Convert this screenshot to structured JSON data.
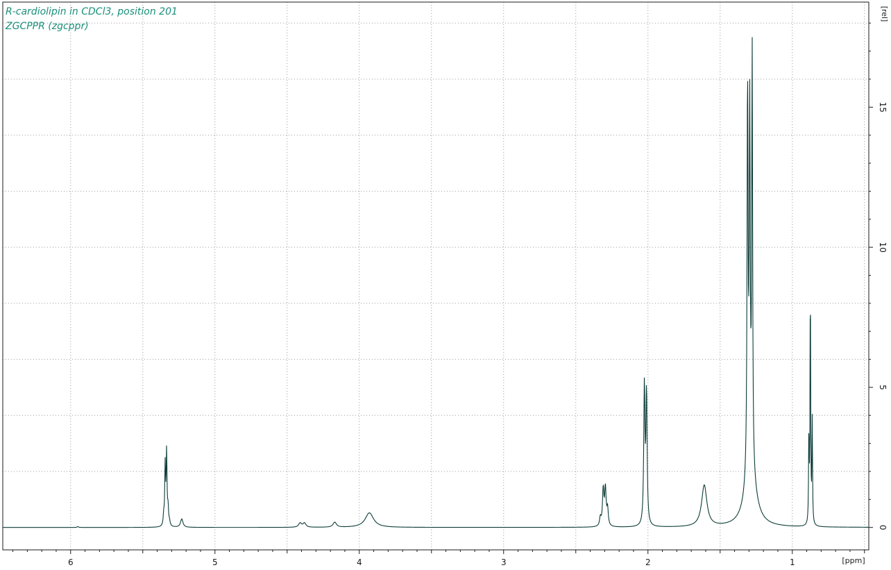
{
  "title": {
    "line1": "R-cardiolipin in CDCl3, position 201",
    "line2": "ZGCPPR (zgcppr)"
  },
  "colors": {
    "title": "#1a8f7a",
    "spectrum": "#0b3b36",
    "axis": "#1a1a1a",
    "grid": "#9a9a9a",
    "background": "#ffffff"
  },
  "chart_data": {
    "type": "line",
    "xlabel": "[ppm]",
    "ylabel": "[rel]",
    "x_reversed": true,
    "xlim": [
      6.47,
      0.47
    ],
    "ylim": [
      -0.8,
      18.75
    ],
    "x_major_ticks": [
      6,
      5,
      4,
      3,
      2,
      1
    ],
    "y_major_ticks": [
      0,
      5,
      10,
      15
    ],
    "x_tick_labels": [
      "6",
      "5",
      "4",
      "3",
      "2",
      "1"
    ],
    "y_tick_labels": [
      "0",
      "5",
      "10",
      "15"
    ],
    "grid": true,
    "baseline": 0,
    "series": [
      {
        "peaks": [
          {
            "ppm": 5.95,
            "height": 0.03,
            "width": 0.006
          },
          {
            "ppm": 5.355,
            "height": 0.35,
            "width": 0.004
          },
          {
            "ppm": 5.345,
            "height": 2.15,
            "width": 0.0035
          },
          {
            "ppm": 5.335,
            "height": 2.6,
            "width": 0.0035
          },
          {
            "ppm": 5.325,
            "height": 0.6,
            "width": 0.004
          },
          {
            "ppm": 5.315,
            "height": 0.15,
            "width": 0.005
          },
          {
            "ppm": 5.23,
            "height": 0.3,
            "width": 0.01
          },
          {
            "ppm": 4.41,
            "height": 0.15,
            "width": 0.012
          },
          {
            "ppm": 4.38,
            "height": 0.15,
            "width": 0.012
          },
          {
            "ppm": 4.17,
            "height": 0.18,
            "width": 0.014
          },
          {
            "ppm": 3.93,
            "height": 0.52,
            "width": 0.035
          },
          {
            "ppm": 2.33,
            "height": 0.3,
            "width": 0.006
          },
          {
            "ppm": 2.31,
            "height": 1.3,
            "width": 0.006
          },
          {
            "ppm": 2.295,
            "height": 1.3,
            "width": 0.006
          },
          {
            "ppm": 2.28,
            "height": 0.6,
            "width": 0.006
          },
          {
            "ppm": 2.025,
            "height": 4.9,
            "width": 0.005
          },
          {
            "ppm": 2.01,
            "height": 4.65,
            "width": 0.005
          },
          {
            "ppm": 1.61,
            "height": 1.48,
            "width": 0.022
          },
          {
            "ppm": 1.31,
            "height": 13.9,
            "width": 0.004
          },
          {
            "ppm": 1.295,
            "height": 12.5,
            "width": 0.004
          },
          {
            "ppm": 1.278,
            "height": 14.75,
            "width": 0.0035
          },
          {
            "ppm": 1.29,
            "height": 2.2,
            "width": 0.04
          },
          {
            "ppm": 0.885,
            "height": 3.2,
            "width": 0.0025
          },
          {
            "ppm": 0.875,
            "height": 8.8,
            "width": 0.0025
          },
          {
            "ppm": 0.862,
            "height": 3.7,
            "width": 0.0025
          }
        ]
      }
    ]
  }
}
